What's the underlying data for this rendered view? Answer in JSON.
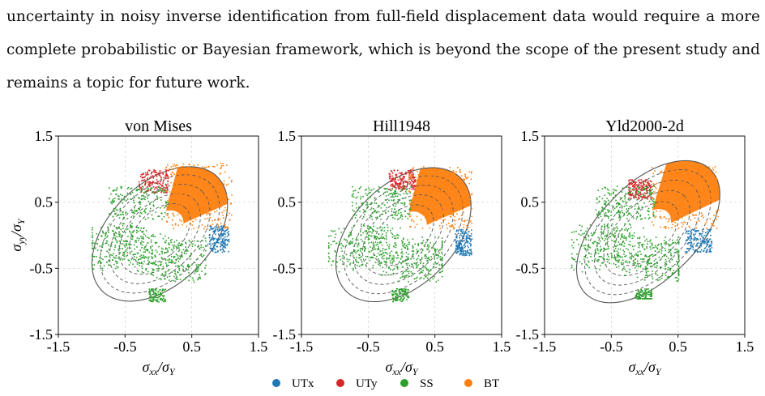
{
  "paragraph": {
    "lines": [
      "uncertainty in noisy inverse identification from full-field displacement data would require a more",
      "complete probabilistic or Bayesian framework, which is beyond the scope of the present study and",
      "remains a topic for future work."
    ]
  },
  "figure": {
    "axis": {
      "ylabel": "σyy/σY",
      "xlabel": "σxx/σY",
      "ticks": [
        "-1.5",
        "-0.5",
        "0.5",
        "1.5"
      ]
    },
    "legend": [
      {
        "label": "UTx",
        "color": "#1f77b4"
      },
      {
        "label": "UTy",
        "color": "#d62728"
      },
      {
        "label": "SS",
        "color": "#2ca02c"
      },
      {
        "label": "BT",
        "color": "#ff7f0e"
      }
    ]
  },
  "chart_data": [
    {
      "type": "scatter",
      "title": "von Mises",
      "xlabel": "σxx/σY",
      "ylabel": "σyy/σY",
      "xlim": [
        -1.5,
        1.5
      ],
      "ylim": [
        -1.5,
        1.5
      ],
      "xticks": [
        -1.5,
        -0.5,
        0.5,
        1.5
      ],
      "yticks": [
        -1.5,
        -0.5,
        0.5,
        1.5
      ],
      "grid": true,
      "series": [
        {
          "name": "UTx",
          "color": "#1f77b4",
          "x_range": [
            0.75,
            1.05
          ],
          "y_range": [
            -0.25,
            0.15
          ]
        },
        {
          "name": "UTy",
          "color": "#d62728",
          "x_range": [
            -0.3,
            0.15
          ],
          "y_range": [
            0.65,
            1.0
          ]
        },
        {
          "name": "SS",
          "color": "#2ca02c",
          "x_range": [
            -1.0,
            0.7
          ],
          "y_range": [
            -1.05,
            0.95
          ]
        },
        {
          "name": "BT",
          "color": "#ff7f0e",
          "x_range": [
            0.1,
            1.1
          ],
          "y_range": [
            0.1,
            1.1
          ]
        }
      ]
    },
    {
      "type": "scatter",
      "title": "Hill1948",
      "xlabel": "σxx/σY",
      "ylabel": "",
      "xlim": [
        -1.5,
        1.5
      ],
      "ylim": [
        -1.5,
        1.5
      ],
      "xticks": [
        -1.5,
        -0.5,
        0.5,
        1.5
      ],
      "yticks": [
        -1.5,
        -0.5,
        0.5,
        1.5
      ],
      "grid": true,
      "series": [
        {
          "name": "UTx",
          "color": "#1f77b4",
          "x_range": [
            0.8,
            1.05
          ],
          "y_range": [
            -0.3,
            0.1
          ]
        },
        {
          "name": "UTy",
          "color": "#d62728",
          "x_range": [
            -0.2,
            0.2
          ],
          "y_range": [
            0.7,
            1.0
          ]
        },
        {
          "name": "SS",
          "color": "#2ca02c",
          "x_range": [
            -1.1,
            0.6
          ],
          "y_range": [
            -1.05,
            0.95
          ]
        },
        {
          "name": "BT",
          "color": "#ff7f0e",
          "x_range": [
            0.1,
            1.05
          ],
          "y_range": [
            0.1,
            1.05
          ]
        }
      ]
    },
    {
      "type": "scatter",
      "title": "Yld2000-2d",
      "xlabel": "σxx/σY",
      "ylabel": "",
      "xlim": [
        -1.5,
        1.5
      ],
      "ylim": [
        -1.5,
        1.5
      ],
      "xticks": [
        -1.5,
        -0.5,
        0.5,
        1.5
      ],
      "yticks": [
        -1.5,
        -0.5,
        0.5,
        1.5
      ],
      "grid": true,
      "series": [
        {
          "name": "UTx",
          "color": "#1f77b4",
          "x_range": [
            0.6,
            1.0
          ],
          "y_range": [
            -0.25,
            0.1
          ]
        },
        {
          "name": "UTy",
          "color": "#d62728",
          "x_range": [
            -0.25,
            0.1
          ],
          "y_range": [
            0.55,
            0.85
          ]
        },
        {
          "name": "SS",
          "color": "#2ca02c",
          "x_range": [
            -1.1,
            0.5
          ],
          "y_range": [
            -0.95,
            0.8
          ]
        },
        {
          "name": "BT",
          "color": "#ff7f0e",
          "x_range": [
            0.1,
            1.1
          ],
          "y_range": [
            0.1,
            1.05
          ]
        }
      ]
    }
  ]
}
